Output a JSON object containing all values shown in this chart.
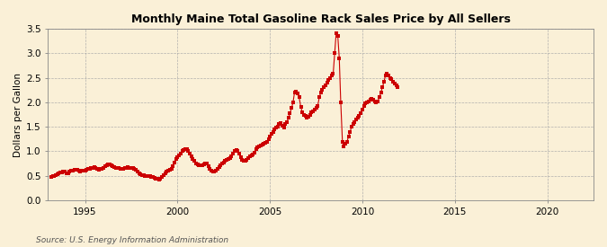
{
  "title": "Monthly Maine Total Gasoline Rack Sales Price by All Sellers",
  "ylabel": "Dollars per Gallon",
  "source": "Source: U.S. Energy Information Administration",
  "background_color": "#FAF0D7",
  "line_color": "#CC0000",
  "xlim": [
    1993.0,
    2022.5
  ],
  "ylim": [
    0.0,
    3.5
  ],
  "yticks": [
    0.0,
    0.5,
    1.0,
    1.5,
    2.0,
    2.5,
    3.0,
    3.5
  ],
  "xticks": [
    1995,
    2000,
    2005,
    2010,
    2015,
    2020
  ],
  "data": [
    [
      1993.17,
      0.48
    ],
    [
      1993.25,
      0.5
    ],
    [
      1993.33,
      0.5
    ],
    [
      1993.42,
      0.52
    ],
    [
      1993.5,
      0.54
    ],
    [
      1993.58,
      0.56
    ],
    [
      1993.67,
      0.57
    ],
    [
      1993.75,
      0.57
    ],
    [
      1993.83,
      0.58
    ],
    [
      1993.92,
      0.59
    ],
    [
      1994.0,
      0.56
    ],
    [
      1994.08,
      0.55
    ],
    [
      1994.17,
      0.58
    ],
    [
      1994.25,
      0.6
    ],
    [
      1994.33,
      0.61
    ],
    [
      1994.42,
      0.63
    ],
    [
      1994.5,
      0.62
    ],
    [
      1994.58,
      0.62
    ],
    [
      1994.67,
      0.6
    ],
    [
      1994.75,
      0.59
    ],
    [
      1994.83,
      0.6
    ],
    [
      1994.92,
      0.6
    ],
    [
      1995.0,
      0.6
    ],
    [
      1995.08,
      0.62
    ],
    [
      1995.17,
      0.64
    ],
    [
      1995.25,
      0.65
    ],
    [
      1995.33,
      0.66
    ],
    [
      1995.42,
      0.67
    ],
    [
      1995.5,
      0.68
    ],
    [
      1995.58,
      0.66
    ],
    [
      1995.67,
      0.64
    ],
    [
      1995.75,
      0.63
    ],
    [
      1995.83,
      0.64
    ],
    [
      1995.92,
      0.65
    ],
    [
      1996.0,
      0.67
    ],
    [
      1996.08,
      0.7
    ],
    [
      1996.17,
      0.72
    ],
    [
      1996.25,
      0.73
    ],
    [
      1996.33,
      0.73
    ],
    [
      1996.42,
      0.72
    ],
    [
      1996.5,
      0.7
    ],
    [
      1996.58,
      0.68
    ],
    [
      1996.67,
      0.67
    ],
    [
      1996.75,
      0.67
    ],
    [
      1996.83,
      0.66
    ],
    [
      1996.92,
      0.65
    ],
    [
      1997.0,
      0.64
    ],
    [
      1997.08,
      0.65
    ],
    [
      1997.17,
      0.66
    ],
    [
      1997.25,
      0.67
    ],
    [
      1997.33,
      0.68
    ],
    [
      1997.42,
      0.67
    ],
    [
      1997.5,
      0.67
    ],
    [
      1997.58,
      0.66
    ],
    [
      1997.67,
      0.64
    ],
    [
      1997.75,
      0.62
    ],
    [
      1997.83,
      0.59
    ],
    [
      1997.92,
      0.56
    ],
    [
      1998.0,
      0.54
    ],
    [
      1998.08,
      0.52
    ],
    [
      1998.17,
      0.51
    ],
    [
      1998.25,
      0.5
    ],
    [
      1998.33,
      0.5
    ],
    [
      1998.42,
      0.5
    ],
    [
      1998.5,
      0.49
    ],
    [
      1998.58,
      0.48
    ],
    [
      1998.67,
      0.47
    ],
    [
      1998.75,
      0.46
    ],
    [
      1998.83,
      0.45
    ],
    [
      1998.92,
      0.44
    ],
    [
      1999.0,
      0.42
    ],
    [
      1999.08,
      0.44
    ],
    [
      1999.17,
      0.48
    ],
    [
      1999.25,
      0.52
    ],
    [
      1999.33,
      0.56
    ],
    [
      1999.42,
      0.58
    ],
    [
      1999.5,
      0.6
    ],
    [
      1999.58,
      0.62
    ],
    [
      1999.67,
      0.65
    ],
    [
      1999.75,
      0.7
    ],
    [
      1999.83,
      0.78
    ],
    [
      1999.92,
      0.84
    ],
    [
      2000.0,
      0.88
    ],
    [
      2000.08,
      0.92
    ],
    [
      2000.17,
      0.96
    ],
    [
      2000.25,
      1.0
    ],
    [
      2000.33,
      1.02
    ],
    [
      2000.42,
      1.04
    ],
    [
      2000.5,
      1.04
    ],
    [
      2000.58,
      1.0
    ],
    [
      2000.67,
      0.96
    ],
    [
      2000.75,
      0.9
    ],
    [
      2000.83,
      0.85
    ],
    [
      2000.92,
      0.8
    ],
    [
      2001.0,
      0.76
    ],
    [
      2001.08,
      0.74
    ],
    [
      2001.17,
      0.72
    ],
    [
      2001.25,
      0.72
    ],
    [
      2001.33,
      0.72
    ],
    [
      2001.42,
      0.74
    ],
    [
      2001.5,
      0.76
    ],
    [
      2001.58,
      0.75
    ],
    [
      2001.67,
      0.7
    ],
    [
      2001.75,
      0.65
    ],
    [
      2001.83,
      0.6
    ],
    [
      2001.92,
      0.58
    ],
    [
      2002.0,
      0.58
    ],
    [
      2002.08,
      0.6
    ],
    [
      2002.17,
      0.64
    ],
    [
      2002.25,
      0.68
    ],
    [
      2002.33,
      0.72
    ],
    [
      2002.42,
      0.76
    ],
    [
      2002.5,
      0.78
    ],
    [
      2002.58,
      0.8
    ],
    [
      2002.67,
      0.82
    ],
    [
      2002.75,
      0.84
    ],
    [
      2002.83,
      0.86
    ],
    [
      2002.92,
      0.9
    ],
    [
      2003.0,
      0.95
    ],
    [
      2003.08,
      1.0
    ],
    [
      2003.17,
      1.02
    ],
    [
      2003.25,
      1.0
    ],
    [
      2003.33,
      0.95
    ],
    [
      2003.42,
      0.88
    ],
    [
      2003.5,
      0.82
    ],
    [
      2003.58,
      0.8
    ],
    [
      2003.67,
      0.8
    ],
    [
      2003.75,
      0.82
    ],
    [
      2003.83,
      0.86
    ],
    [
      2003.92,
      0.9
    ],
    [
      2004.0,
      0.92
    ],
    [
      2004.08,
      0.94
    ],
    [
      2004.17,
      0.98
    ],
    [
      2004.25,
      1.04
    ],
    [
      2004.33,
      1.08
    ],
    [
      2004.42,
      1.1
    ],
    [
      2004.5,
      1.12
    ],
    [
      2004.58,
      1.14
    ],
    [
      2004.67,
      1.15
    ],
    [
      2004.75,
      1.18
    ],
    [
      2004.83,
      1.2
    ],
    [
      2004.92,
      1.25
    ],
    [
      2005.0,
      1.3
    ],
    [
      2005.08,
      1.35
    ],
    [
      2005.17,
      1.4
    ],
    [
      2005.25,
      1.45
    ],
    [
      2005.33,
      1.48
    ],
    [
      2005.42,
      1.5
    ],
    [
      2005.5,
      1.55
    ],
    [
      2005.58,
      1.58
    ],
    [
      2005.67,
      1.52
    ],
    [
      2005.75,
      1.48
    ],
    [
      2005.83,
      1.55
    ],
    [
      2005.92,
      1.6
    ],
    [
      2006.0,
      1.68
    ],
    [
      2006.08,
      1.78
    ],
    [
      2006.17,
      1.88
    ],
    [
      2006.25,
      2.0
    ],
    [
      2006.33,
      2.2
    ],
    [
      2006.42,
      2.22
    ],
    [
      2006.5,
      2.18
    ],
    [
      2006.58,
      2.1
    ],
    [
      2006.67,
      1.9
    ],
    [
      2006.75,
      1.8
    ],
    [
      2006.83,
      1.75
    ],
    [
      2006.92,
      1.72
    ],
    [
      2007.0,
      1.68
    ],
    [
      2007.08,
      1.7
    ],
    [
      2007.17,
      1.75
    ],
    [
      2007.25,
      1.8
    ],
    [
      2007.33,
      1.82
    ],
    [
      2007.42,
      1.85
    ],
    [
      2007.5,
      1.88
    ],
    [
      2007.58,
      1.92
    ],
    [
      2007.67,
      2.1
    ],
    [
      2007.75,
      2.2
    ],
    [
      2007.83,
      2.25
    ],
    [
      2007.92,
      2.3
    ],
    [
      2008.0,
      2.35
    ],
    [
      2008.08,
      2.4
    ],
    [
      2008.17,
      2.45
    ],
    [
      2008.25,
      2.5
    ],
    [
      2008.33,
      2.55
    ],
    [
      2008.42,
      2.58
    ],
    [
      2008.5,
      3.0
    ],
    [
      2008.58,
      3.4
    ],
    [
      2008.67,
      3.35
    ],
    [
      2008.75,
      2.9
    ],
    [
      2008.83,
      2.0
    ],
    [
      2008.92,
      1.2
    ],
    [
      2009.0,
      1.1
    ],
    [
      2009.08,
      1.15
    ],
    [
      2009.17,
      1.2
    ],
    [
      2009.25,
      1.3
    ],
    [
      2009.33,
      1.4
    ],
    [
      2009.42,
      1.5
    ],
    [
      2009.5,
      1.55
    ],
    [
      2009.58,
      1.6
    ],
    [
      2009.67,
      1.65
    ],
    [
      2009.75,
      1.68
    ],
    [
      2009.83,
      1.72
    ],
    [
      2009.92,
      1.78
    ],
    [
      2010.0,
      1.85
    ],
    [
      2010.08,
      1.92
    ],
    [
      2010.17,
      1.98
    ],
    [
      2010.25,
      2.0
    ],
    [
      2010.33,
      2.02
    ],
    [
      2010.42,
      2.05
    ],
    [
      2010.5,
      2.08
    ],
    [
      2010.58,
      2.05
    ],
    [
      2010.67,
      2.02
    ],
    [
      2010.75,
      2.0
    ],
    [
      2010.83,
      2.02
    ],
    [
      2010.92,
      2.1
    ],
    [
      2011.0,
      2.2
    ],
    [
      2011.08,
      2.3
    ],
    [
      2011.17,
      2.42
    ],
    [
      2011.25,
      2.55
    ],
    [
      2011.33,
      2.58
    ],
    [
      2011.42,
      2.55
    ],
    [
      2011.5,
      2.5
    ],
    [
      2011.58,
      2.48
    ],
    [
      2011.67,
      2.42
    ],
    [
      2011.75,
      2.38
    ],
    [
      2011.83,
      2.35
    ],
    [
      2011.92,
      2.3
    ]
  ]
}
